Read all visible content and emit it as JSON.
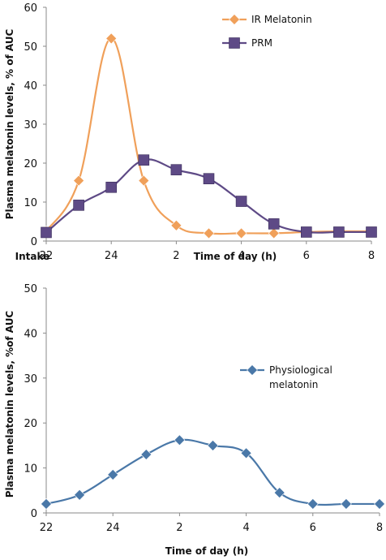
{
  "chart_data": [
    {
      "type": "line",
      "title": "",
      "xlabel": "Time of day (h)",
      "ylabel": "Plasma melatonin levels, % of AUC",
      "x_annotation": "Intake",
      "x": [
        22,
        23,
        24,
        25,
        26,
        27,
        28,
        29,
        30,
        31,
        32
      ],
      "x_tick_values": [
        22,
        24,
        26,
        28,
        30,
        32
      ],
      "x_tick_labels": [
        "22",
        "24",
        "2",
        "4",
        "6",
        "8"
      ],
      "ylim": [
        0,
        60
      ],
      "y_ticks": [
        0,
        10,
        20,
        30,
        40,
        50,
        60
      ],
      "legend_position": "top-right",
      "grid": false,
      "series": [
        {
          "name": "IR Melatonin",
          "color": "#F0A05A",
          "marker": "diamond",
          "values": [
            2.5,
            15.5,
            52,
            15.5,
            4,
            2,
            2,
            2,
            2.3,
            2.5,
            2.5
          ],
          "marker_points": [
            0,
            1,
            2,
            3,
            4,
            5,
            6,
            7
          ]
        },
        {
          "name": "PRM",
          "color": "#5E4A86",
          "marker": "square",
          "values": [
            2.2,
            9.2,
            13.8,
            20.8,
            18.3,
            16,
            10.2,
            4.4,
            2.3,
            2.3,
            2.3
          ],
          "marker_points": [
            0,
            1,
            2,
            3,
            4,
            5,
            6,
            7,
            8,
            9,
            10
          ]
        }
      ]
    },
    {
      "type": "line",
      "title": "",
      "xlabel": "Time of day (h)",
      "ylabel": "Plasma melatonin levels, %of AUC",
      "x": [
        22,
        23,
        24,
        25,
        26,
        27,
        28,
        29,
        30,
        31,
        32
      ],
      "x_tick_values": [
        22,
        24,
        26,
        28,
        30,
        32
      ],
      "x_tick_labels": [
        "22",
        "24",
        "2",
        "4",
        "6",
        "8"
      ],
      "ylim": [
        0,
        50
      ],
      "y_ticks": [
        0,
        10,
        20,
        30,
        40,
        50
      ],
      "legend_position": "right",
      "grid": false,
      "series": [
        {
          "name": "Physiological melatonin",
          "name_lines": [
            "Physiological",
            "melatonin"
          ],
          "color": "#4A78A8",
          "marker": "diamond",
          "values": [
            2,
            4,
            8.5,
            13,
            16.2,
            15,
            13.3,
            4.5,
            2,
            2,
            2
          ],
          "marker_points": [
            0,
            1,
            2,
            3,
            4,
            5,
            6,
            7,
            8,
            9,
            10
          ]
        }
      ]
    }
  ]
}
